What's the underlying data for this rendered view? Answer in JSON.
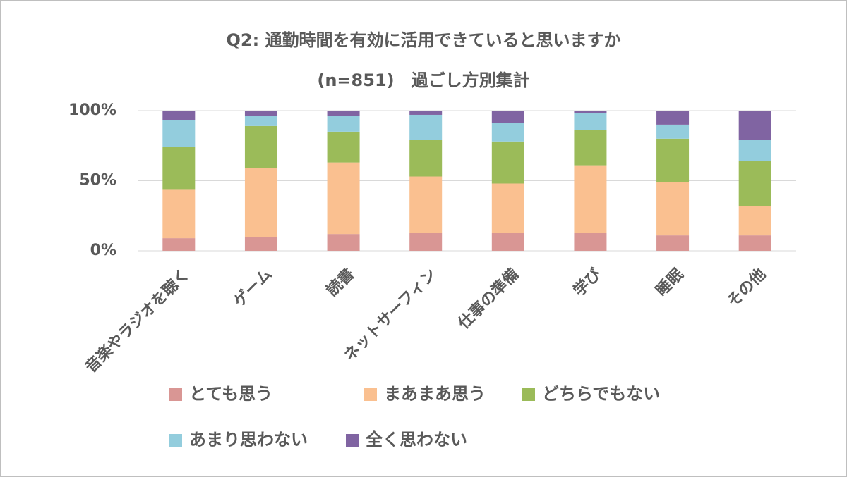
{
  "chart_data": {
    "type": "stacked-bar",
    "title": "Q2: 通勤時間を有効に活用できていると思いますか",
    "subtitle": "(n=851)　過ごし方別集計",
    "categories": [
      "音楽やラジオを聴く",
      "ゲーム",
      "読書",
      "ネットサーフィン",
      "仕事の準備",
      "学び",
      "睡眠",
      "その他"
    ],
    "series": [
      {
        "name": "とても思う",
        "color": "#d99694",
        "values": [
          9,
          10,
          12,
          13,
          13,
          13,
          11,
          11
        ]
      },
      {
        "name": "まあまあ思う",
        "color": "#fac090",
        "values": [
          35,
          49,
          51,
          40,
          35,
          48,
          38,
          21
        ]
      },
      {
        "name": "どちらでもない",
        "color": "#9bbb59",
        "values": [
          30,
          30,
          22,
          26,
          30,
          25,
          31,
          32
        ]
      },
      {
        "name": "あまり思わない",
        "color": "#93cddd",
        "values": [
          19,
          7,
          11,
          18,
          13,
          12,
          10,
          15
        ]
      },
      {
        "name": "全く思わない",
        "color": "#8064a2",
        "values": [
          7,
          4,
          4,
          3,
          9,
          2,
          10,
          21
        ]
      }
    ],
    "ylim": [
      0,
      100
    ],
    "yticks": [
      {
        "value": 0,
        "label": "0%"
      },
      {
        "value": 50,
        "label": "50%"
      },
      {
        "value": 100,
        "label": "100%"
      }
    ],
    "grid": true
  }
}
